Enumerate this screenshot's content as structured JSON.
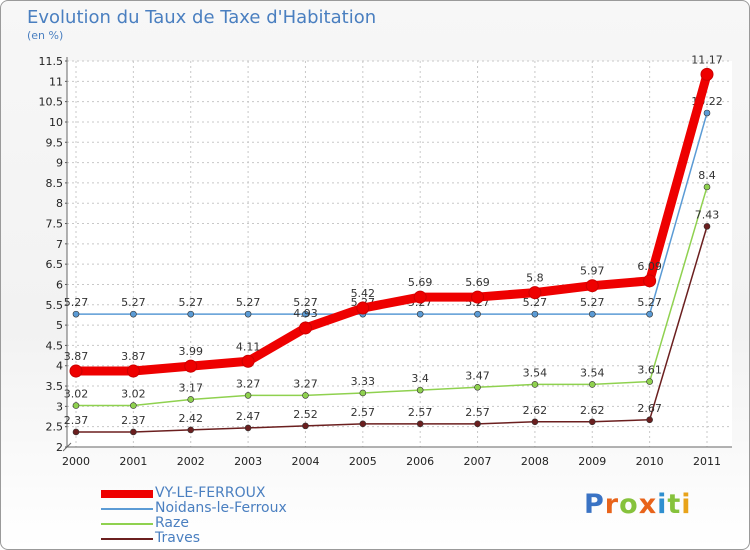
{
  "title": "Evolution du Taux de Taxe d'Habitation",
  "unit": "(en %)",
  "brand": "Proxiti",
  "chart_data": {
    "type": "line",
    "title": "Evolution du Taux de Taxe d'Habitation",
    "ylabel": "(en %)",
    "xlabel": "",
    "x": [
      2000,
      2001,
      2002,
      2003,
      2004,
      2005,
      2006,
      2007,
      2008,
      2009,
      2010,
      2011
    ],
    "ylim": [
      2,
      11.5
    ],
    "yticks": [
      "2",
      "2.5",
      "3",
      "3.5",
      "4",
      "4.5",
      "5",
      "5.5",
      "6",
      "6.5",
      "7",
      "7.5",
      "8",
      "8.5",
      "9",
      "9.5",
      "10",
      "10.5",
      "11",
      "11.5"
    ],
    "legend_position": "bottom-left",
    "series": [
      {
        "name": "Noidans-le-Ferroux",
        "color": "#5b9bd5",
        "width": "thin",
        "values": [
          5.27,
          5.27,
          5.27,
          5.27,
          5.27,
          5.27,
          5.27,
          5.27,
          5.27,
          5.27,
          5.27,
          10.22
        ],
        "labels": [
          "5.27",
          "5.27",
          "5.27",
          "5.27",
          "5.27",
          "5.27",
          "5.27",
          "5.27",
          "5.27",
          "5.27",
          "5.27",
          "10.22"
        ]
      },
      {
        "name": "Raze",
        "color": "#8fd14f",
        "width": "thin",
        "values": [
          3.02,
          3.02,
          3.17,
          3.27,
          3.27,
          3.33,
          3.4,
          3.47,
          3.54,
          3.54,
          3.61,
          8.4
        ],
        "labels": [
          "3.02",
          "3.02",
          "3.17",
          "3.27",
          "3.27",
          "3.33",
          "3.4",
          "3.47",
          "3.54",
          "3.54",
          "3.61",
          "8.4"
        ]
      },
      {
        "name": "Traves",
        "color": "#6b1f1f",
        "width": "thin",
        "values": [
          2.37,
          2.37,
          2.42,
          2.47,
          2.52,
          2.57,
          2.57,
          2.57,
          2.62,
          2.62,
          2.67,
          7.43
        ],
        "labels": [
          "2.37",
          "2.37",
          "2.42",
          "2.47",
          "2.52",
          "2.57",
          "2.57",
          "2.57",
          "2.62",
          "2.62",
          "2.67",
          "7.43"
        ]
      },
      {
        "name": "VY-LE-FERROUX",
        "color": "#ee0000",
        "width": "thick",
        "values": [
          3.87,
          3.87,
          3.99,
          4.11,
          4.93,
          5.42,
          5.69,
          5.69,
          5.8,
          5.97,
          6.09,
          11.17
        ],
        "labels": [
          "3.87",
          "3.87",
          "3.99",
          "4.11",
          "4.93",
          "5.42",
          "5.69",
          "5.69",
          "5.8",
          "5.97",
          "6.09",
          "11.17"
        ]
      }
    ],
    "legend_order": [
      "VY-LE-FERROUX",
      "Noidans-le-Ferroux",
      "Raze",
      "Traves"
    ]
  }
}
